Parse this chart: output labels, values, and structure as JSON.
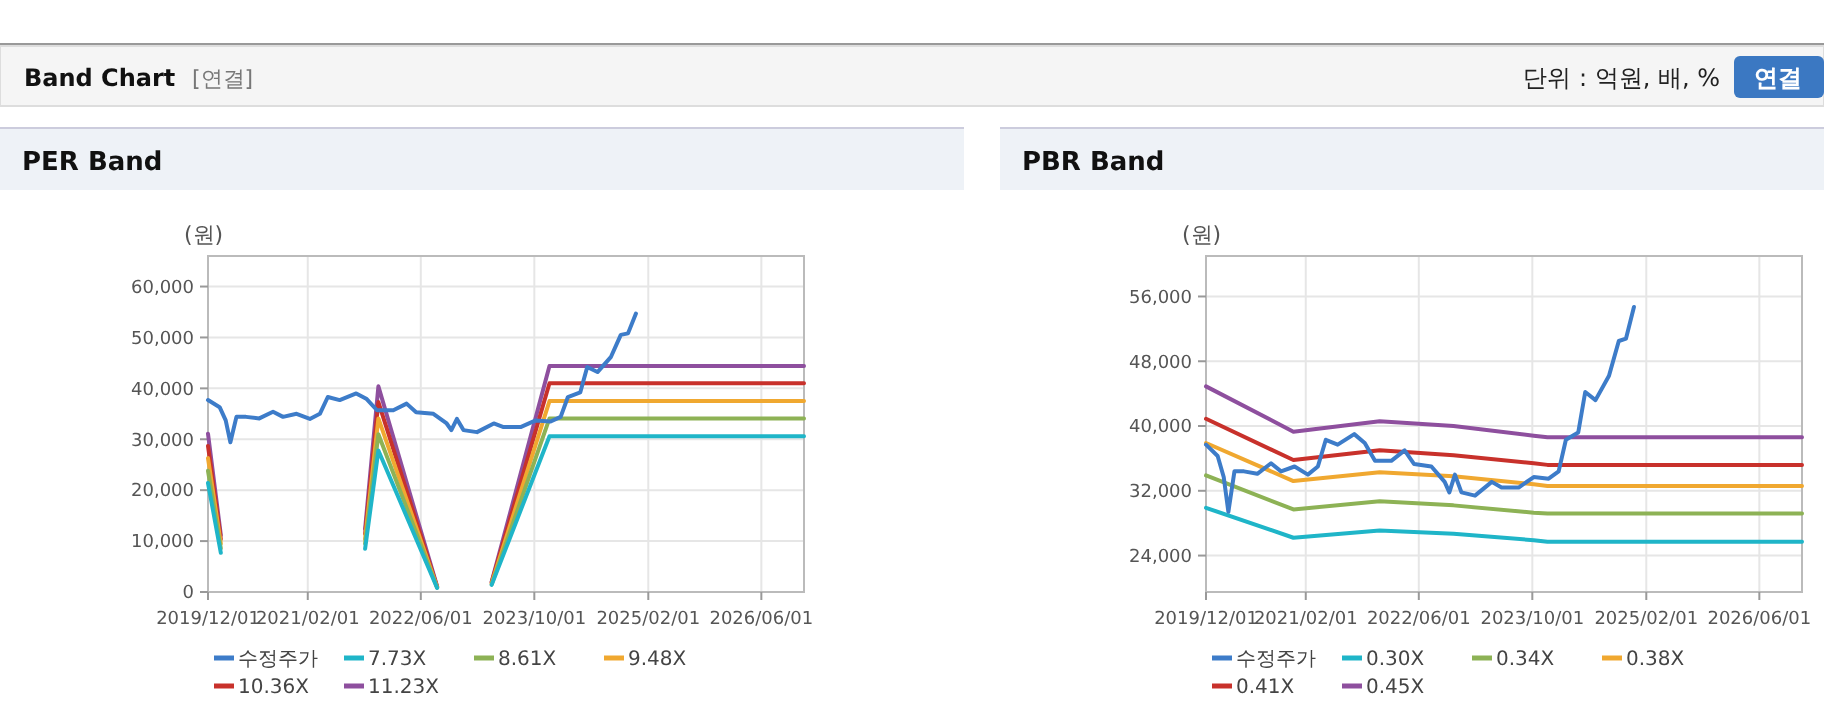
{
  "chart_data": [
    {
      "type": "other",
      "title": "Band Chart",
      "annotations": [
        "[연결]",
        "단위 : 억원, 배, %",
        "연결"
      ]
    },
    {
      "type": "line",
      "title": "PER Band",
      "ylabel": "(원)",
      "xlim": [
        "2019-12-01",
        "2026-12-01"
      ],
      "xticks": [
        {
          "value": "2019-12-01",
          "label": "2019/12/01"
        },
        {
          "value": "2021-02-01",
          "label": "2021/02/01"
        },
        {
          "value": "2022-06-01",
          "label": "2022/06/01"
        },
        {
          "value": "2023-10-01",
          "label": "2023/10/01"
        },
        {
          "value": "2025-02-01",
          "label": "2025/02/01"
        },
        {
          "value": "2026-06-01",
          "label": "2026/06/01"
        }
      ],
      "ylim": [
        0,
        66000
      ],
      "yticks": [
        0,
        {
          "value": 10000,
          "label": "10,000"
        },
        {
          "value": 20000,
          "label": "20,000"
        },
        {
          "value": 30000,
          "label": "30,000"
        },
        {
          "value": 40000,
          "label": "40,000"
        },
        {
          "value": 50000,
          "label": "50,000"
        },
        {
          "value": 60000,
          "label": "60,000"
        }
      ],
      "grid": true,
      "legend": "bottom",
      "marker": "none",
      "line_style": "solid",
      "series": [
        {
          "name": "수정주가",
          "color": "#3d7cc9",
          "x": [
            "2019-12-01",
            "2020-01-20",
            "2020-02-15",
            "2020-03-06",
            "2020-04-01",
            "2020-05-12",
            "2020-07-08",
            "2020-09-05",
            "2020-10-18",
            "2020-12-15",
            "2021-02-10",
            "2021-03-25",
            "2021-04-28",
            "2021-06-18",
            "2021-08-28",
            "2021-10-12",
            "2021-11-25",
            "2022-02-03",
            "2022-04-01",
            "2022-05-12",
            "2022-07-25",
            "2022-09-20",
            "2022-10-10",
            "2022-11-03",
            "2022-12-01",
            "2023-01-28",
            "2023-04-10",
            "2023-05-22",
            "2023-08-03",
            "2023-10-07",
            "2023-12-10",
            "2024-01-22",
            "2024-02-22",
            "2024-04-15",
            "2024-05-15",
            "2024-06-28",
            "2024-08-25",
            "2024-10-06",
            "2024-11-06",
            "2024-12-10"
          ],
          "values": [
            37700,
            36300,
            33700,
            29400,
            34400,
            34400,
            34100,
            35400,
            34400,
            35000,
            34000,
            35000,
            38300,
            37700,
            39000,
            37900,
            35700,
            35700,
            37000,
            35300,
            35000,
            33100,
            31800,
            34000,
            31800,
            31400,
            33100,
            32400,
            32400,
            33700,
            33500,
            34400,
            38300,
            39200,
            44200,
            43200,
            46200,
            50500,
            50800,
            54700
          ]
        },
        {
          "name": "7.73X",
          "color": "#1fb5c8",
          "x": [
            "2019-12-01",
            "2020-01-25",
            "2020-06-01",
            "2021-10-05",
            "2021-12-01",
            "2022-08-10",
            "2022-12-01",
            "2023-04-01",
            "2023-12-05",
            "2026-12-01"
          ],
          "values": [
            21400,
            7700,
            null,
            8500,
            27800,
            800,
            null,
            1400,
            30600,
            30600
          ]
        },
        {
          "name": "8.61X",
          "color": "#8db255",
          "x": [
            "2019-12-01",
            "2020-01-25",
            "2020-06-01",
            "2021-10-05",
            "2021-12-01",
            "2022-08-10",
            "2022-12-01",
            "2023-04-01",
            "2023-12-05",
            "2026-12-01"
          ],
          "values": [
            23800,
            8600,
            null,
            9500,
            31000,
            900,
            null,
            1500,
            34100,
            34100
          ]
        },
        {
          "name": "9.48X",
          "color": "#f0a830",
          "x": [
            "2019-12-01",
            "2020-01-25",
            "2020-06-01",
            "2021-10-05",
            "2021-12-01",
            "2022-08-10",
            "2022-12-01",
            "2023-04-01",
            "2023-12-05",
            "2026-12-01"
          ],
          "values": [
            26300,
            9500,
            null,
            10400,
            34100,
            900,
            null,
            1700,
            37500,
            37500
          ]
        },
        {
          "name": "10.36X",
          "color": "#c8312b",
          "x": [
            "2019-12-01",
            "2020-01-25",
            "2020-06-01",
            "2021-10-05",
            "2021-12-01",
            "2022-08-10",
            "2022-12-01",
            "2023-04-01",
            "2023-12-05",
            "2026-12-01"
          ],
          "values": [
            28700,
            10400,
            null,
            11400,
            37300,
            1000,
            null,
            1900,
            41000,
            41000
          ]
        },
        {
          "name": "11.23X",
          "color": "#8e4f9e",
          "x": [
            "2019-12-01",
            "2020-01-25",
            "2020-06-01",
            "2021-10-05",
            "2021-12-01",
            "2022-08-10",
            "2022-12-01",
            "2023-04-01",
            "2023-12-05",
            "2026-12-01"
          ],
          "values": [
            31100,
            11200,
            null,
            12400,
            40400,
            1100,
            null,
            2000,
            44400,
            44400
          ]
        }
      ]
    },
    {
      "type": "line",
      "title": "PBR Band",
      "ylabel": "(원)",
      "xlim": [
        "2019-12-01",
        "2026-12-01"
      ],
      "xticks": [
        {
          "value": "2019-12-01",
          "label": "2019/12/01"
        },
        {
          "value": "2021-02-01",
          "label": "2021/02/01"
        },
        {
          "value": "2022-06-01",
          "label": "2022/06/01"
        },
        {
          "value": "2023-10-01",
          "label": "2023/10/01"
        },
        {
          "value": "2025-02-01",
          "label": "2025/02/01"
        },
        {
          "value": "2026-06-01",
          "label": "2026/06/01"
        }
      ],
      "ylim": [
        19500,
        61000
      ],
      "yticks": [
        {
          "value": 24000,
          "label": "24,000"
        },
        {
          "value": 32000,
          "label": "32,000"
        },
        {
          "value": 40000,
          "label": "40,000"
        },
        {
          "value": 48000,
          "label": "48,000"
        },
        {
          "value": 56000,
          "label": "56,000"
        }
      ],
      "grid": true,
      "legend": "bottom",
      "marker": "none",
      "line_style": "solid",
      "series": [
        {
          "name": "수정주가",
          "color": "#3d7cc9",
          "x": [
            "2019-12-01",
            "2020-01-20",
            "2020-02-15",
            "2020-03-06",
            "2020-04-01",
            "2020-05-12",
            "2020-07-08",
            "2020-09-05",
            "2020-10-18",
            "2020-12-15",
            "2021-02-10",
            "2021-03-25",
            "2021-04-28",
            "2021-06-18",
            "2021-08-28",
            "2021-10-12",
            "2021-11-25",
            "2022-02-03",
            "2022-04-01",
            "2022-05-12",
            "2022-07-25",
            "2022-09-20",
            "2022-10-10",
            "2022-11-03",
            "2022-12-01",
            "2023-01-28",
            "2023-04-10",
            "2023-05-22",
            "2023-08-03",
            "2023-10-07",
            "2023-12-10",
            "2024-01-22",
            "2024-02-22",
            "2024-04-15",
            "2024-05-15",
            "2024-06-28",
            "2024-08-25",
            "2024-10-06",
            "2024-11-06",
            "2024-12-10"
          ],
          "values": [
            37700,
            36300,
            33700,
            29400,
            34400,
            34400,
            34100,
            35400,
            34400,
            35000,
            34000,
            35000,
            38300,
            37700,
            39000,
            37900,
            35700,
            35700,
            37000,
            35300,
            35000,
            33100,
            31800,
            34000,
            31800,
            31400,
            33100,
            32400,
            32400,
            33700,
            33500,
            34400,
            38300,
            39200,
            44200,
            43200,
            46200,
            50500,
            50800,
            54700
          ]
        },
        {
          "name": "0.30X",
          "color": "#1fb5c8",
          "x": [
            "2019-12-01",
            "2020-12-10",
            "2021-12-15",
            "2022-10-28",
            "2023-10-07",
            "2023-12-05",
            "2026-12-01"
          ],
          "values": [
            29900,
            26200,
            27100,
            26700,
            25900,
            25700,
            25700
          ]
        },
        {
          "name": "0.34X",
          "color": "#8db255",
          "x": [
            "2019-12-01",
            "2020-12-10",
            "2021-12-15",
            "2022-10-28",
            "2023-10-07",
            "2023-12-05",
            "2026-12-01"
          ],
          "values": [
            33900,
            29700,
            30700,
            30200,
            29300,
            29200,
            29200
          ]
        },
        {
          "name": "0.38X",
          "color": "#f0a830",
          "x": [
            "2019-12-01",
            "2020-12-10",
            "2021-12-15",
            "2022-10-28",
            "2023-10-07",
            "2023-12-05",
            "2026-12-01"
          ],
          "values": [
            37900,
            33200,
            34300,
            33800,
            32800,
            32600,
            32600
          ]
        },
        {
          "name": "0.41X",
          "color": "#c8312b",
          "x": [
            "2019-12-01",
            "2020-12-10",
            "2021-12-15",
            "2022-10-28",
            "2023-10-07",
            "2023-12-05",
            "2026-12-01"
          ],
          "values": [
            40900,
            35800,
            37000,
            36400,
            35400,
            35200,
            35200
          ]
        },
        {
          "name": "0.45X",
          "color": "#8e4f9e",
          "x": [
            "2019-12-01",
            "2020-12-10",
            "2021-12-15",
            "2022-10-28",
            "2023-10-07",
            "2023-12-05",
            "2026-12-01"
          ],
          "values": [
            44900,
            39300,
            40600,
            40000,
            38800,
            38600,
            38600
          ]
        }
      ]
    }
  ]
}
